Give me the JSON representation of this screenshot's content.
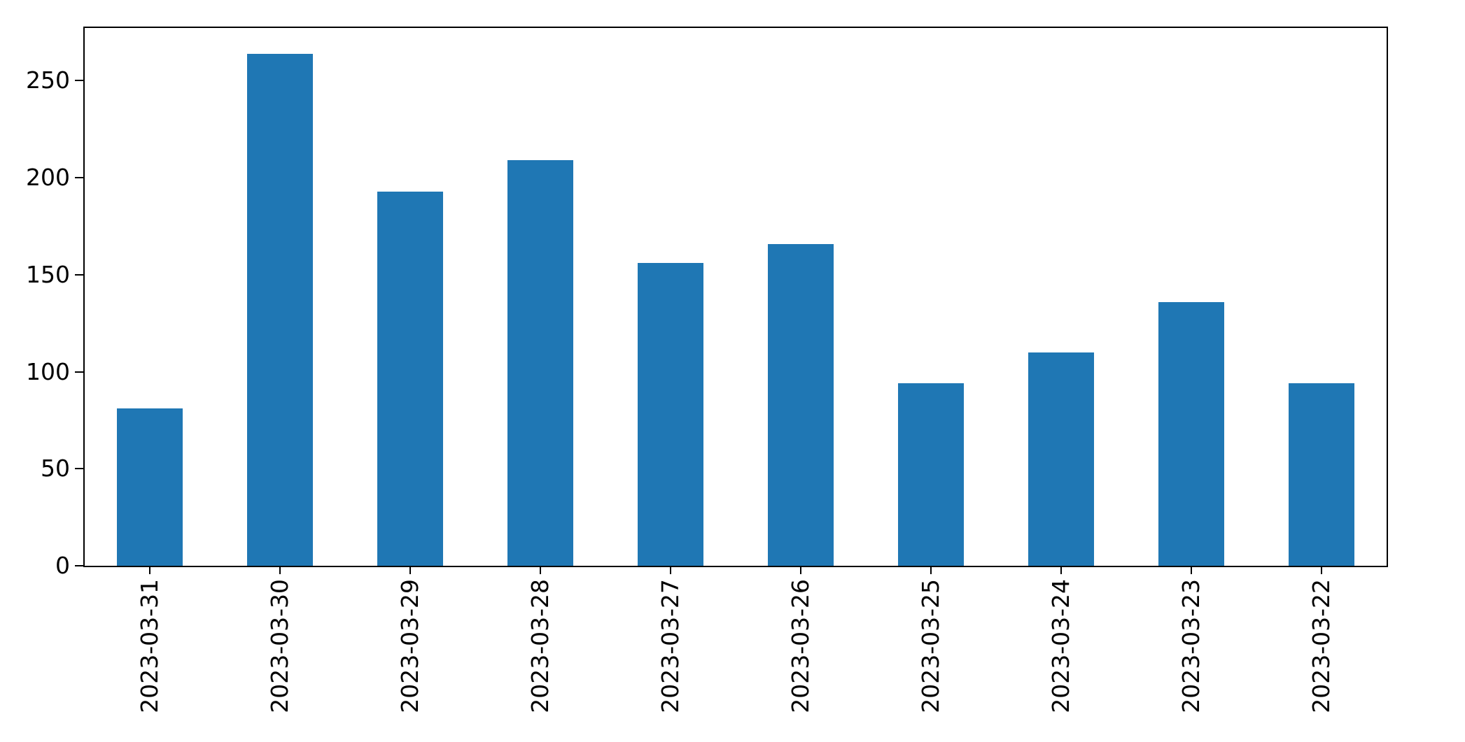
{
  "chart_data": {
    "type": "bar",
    "categories": [
      "2023-03-31",
      "2023-03-30",
      "2023-03-29",
      "2023-03-28",
      "2023-03-27",
      "2023-03-26",
      "2023-03-25",
      "2023-03-24",
      "2023-03-23",
      "2023-03-22"
    ],
    "values": [
      81,
      264,
      193,
      209,
      156,
      166,
      94,
      110,
      136,
      94
    ],
    "title": "",
    "xlabel": "",
    "ylabel": "",
    "ylim": [
      0,
      277.2
    ],
    "yticks": [
      0,
      50,
      100,
      150,
      200,
      250
    ],
    "x_tick_rotation": 90,
    "grid": false,
    "legend_position": "none",
    "bar_color": "#1f77b4",
    "spine_color": "#000000",
    "background_color": "#ffffff"
  }
}
